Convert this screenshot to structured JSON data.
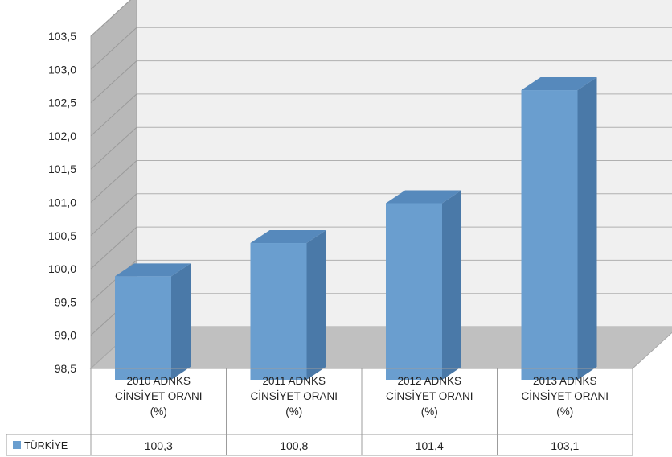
{
  "chart_data": {
    "type": "bar",
    "style": "3d-clustered-column-with-data-table",
    "categories": [
      [
        "2010 ADNKS",
        "CİNSİYET ORANI",
        "(%)"
      ],
      [
        "2011 ADNKS",
        "CİNSİYET ORANI",
        "(%)"
      ],
      [
        "2012 ADNKS",
        "CİNSİYET ORANI",
        "(%)"
      ],
      [
        "2013 ADNKS",
        "CİNSİYET ORANI",
        "(%)"
      ]
    ],
    "series": [
      {
        "name": "TÜRKİYE",
        "values": [
          100.3,
          100.8,
          101.4,
          103.1
        ],
        "value_labels": [
          "100,3",
          "100,8",
          "101,4",
          "103,1"
        ],
        "color": "#6A9ECF"
      }
    ],
    "ylim": [
      98.5,
      103.5
    ],
    "yticks": [
      "98,5",
      "99,0",
      "99,5",
      "100,0",
      "100,5",
      "101,0",
      "101,5",
      "102,0",
      "102,5",
      "103,0",
      "103,5"
    ],
    "grid": true,
    "legend": "data-table-left",
    "colors": {
      "bar_front": "#6A9ECF",
      "bar_side": "#4A79A8",
      "bar_top": "#5689BC",
      "back_wall": "#F0F0F0",
      "side_wall": "#B8B8B8",
      "floor": "#C0C0C0",
      "gridline": "#B0B0B0"
    }
  }
}
